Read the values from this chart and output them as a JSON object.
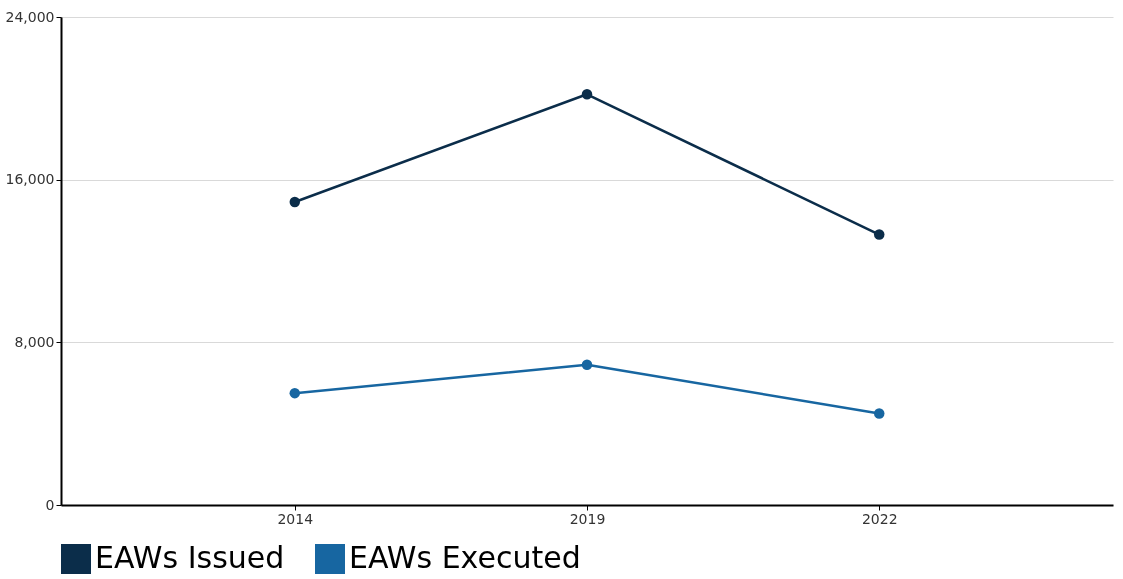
{
  "chart_data": {
    "type": "line",
    "categories": [
      "2014",
      "2019",
      "2022"
    ],
    "series": [
      {
        "name": "EAWs Issued",
        "color": "#0b2d4a",
        "values": [
          14900,
          20200,
          13300
        ]
      },
      {
        "name": "EAWs Executed",
        "color": "#1766a1",
        "values": [
          5500,
          6900,
          4500
        ]
      }
    ],
    "ylim": [
      0,
      24000
    ],
    "yticks": [
      {
        "value": 0,
        "label": "0"
      },
      {
        "value": 8000,
        "label": "8,000"
      },
      {
        "value": 16000,
        "label": "16,000"
      },
      {
        "value": 24000,
        "label": "24,000"
      }
    ],
    "grid": "y",
    "legend": "bottom",
    "marker": "circle",
    "line_style": "solid"
  }
}
